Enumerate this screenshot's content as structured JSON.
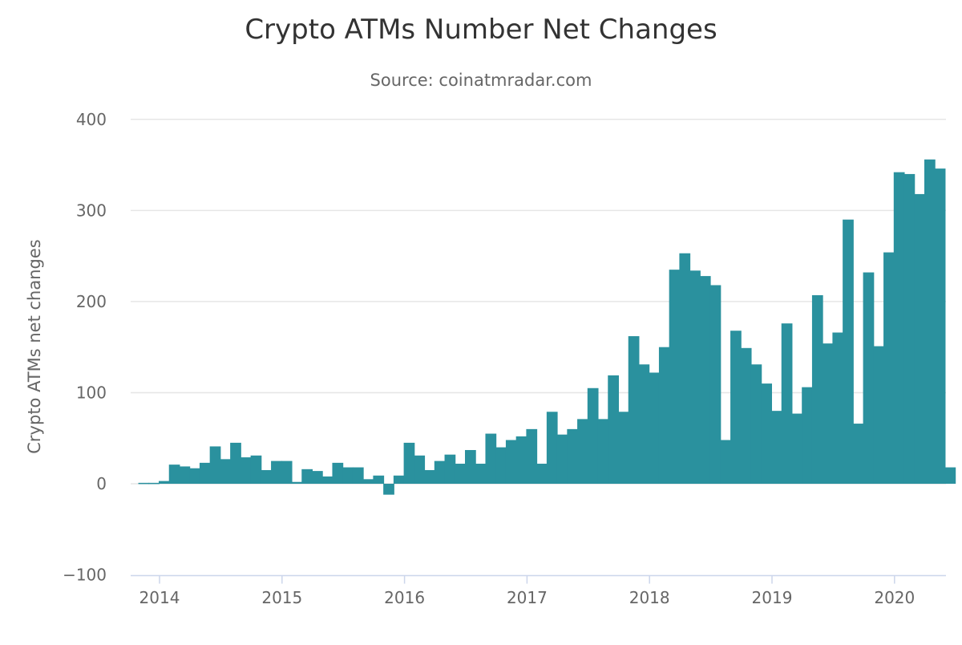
{
  "chart_data": {
    "type": "bar",
    "title": "Crypto ATMs Number Net Changes",
    "subtitle": "Source: coinatmradar.com",
    "xlabel": "",
    "ylabel": "Crypto ATMs net changes",
    "ylim": [
      -100,
      400
    ],
    "yticks": [
      "−100",
      "0",
      "100",
      "200",
      "300",
      "400"
    ],
    "ytick_values": [
      -100,
      0,
      100,
      200,
      300,
      400
    ],
    "xticks": [
      "2014",
      "2015",
      "2016",
      "2017",
      "2018",
      "2019",
      "2020"
    ],
    "grid": true,
    "legend": "none",
    "color": "#2a919e",
    "x_unit": "month",
    "x": [
      "2013-11",
      "2013-12",
      "2014-01",
      "2014-02",
      "2014-03",
      "2014-04",
      "2014-05",
      "2014-06",
      "2014-07",
      "2014-08",
      "2014-09",
      "2014-10",
      "2014-11",
      "2014-12",
      "2015-01",
      "2015-02",
      "2015-03",
      "2015-04",
      "2015-05",
      "2015-06",
      "2015-07",
      "2015-08",
      "2015-09",
      "2015-10",
      "2015-11",
      "2015-12",
      "2016-01",
      "2016-02",
      "2016-03",
      "2016-04",
      "2016-05",
      "2016-06",
      "2016-07",
      "2016-08",
      "2016-09",
      "2016-10",
      "2016-11",
      "2016-12",
      "2017-01",
      "2017-02",
      "2017-03",
      "2017-04",
      "2017-05",
      "2017-06",
      "2017-07",
      "2017-08",
      "2017-09",
      "2017-10",
      "2017-11",
      "2017-12",
      "2018-01",
      "2018-02",
      "2018-03",
      "2018-04",
      "2018-05",
      "2018-06",
      "2018-07",
      "2018-08",
      "2018-09",
      "2018-10",
      "2018-11",
      "2018-12",
      "2019-01",
      "2019-02",
      "2019-03",
      "2019-04",
      "2019-05",
      "2019-06",
      "2019-07",
      "2019-08",
      "2019-09",
      "2019-10",
      "2019-11",
      "2019-12",
      "2020-01",
      "2020-02",
      "2020-03",
      "2020-04",
      "2020-05",
      "2020-06"
    ],
    "values": [
      1,
      1,
      3,
      21,
      19,
      17,
      23,
      41,
      27,
      45,
      29,
      31,
      15,
      25,
      25,
      2,
      16,
      14,
      8,
      23,
      18,
      18,
      5,
      9,
      -12,
      9,
      45,
      31,
      15,
      25,
      32,
      22,
      37,
      22,
      55,
      40,
      48,
      52,
      60,
      22,
      79,
      54,
      60,
      71,
      105,
      71,
      119,
      79,
      162,
      131,
      122,
      150,
      235,
      253,
      234,
      228,
      218,
      48,
      168,
      149,
      131,
      110,
      80,
      176,
      77,
      106,
      207,
      154,
      166,
      290,
      66,
      232,
      151,
      254,
      342,
      340,
      318,
      356,
      346,
      18
    ]
  }
}
